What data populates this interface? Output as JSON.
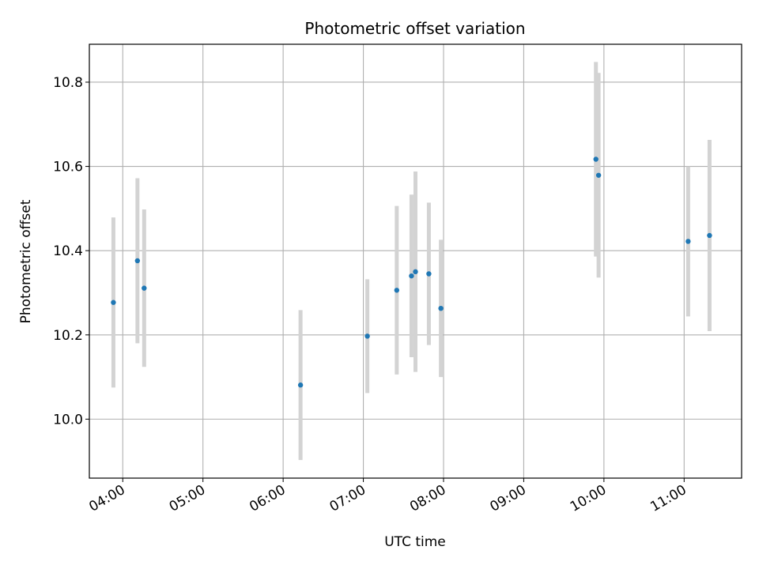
{
  "chart_data": {
    "type": "scatter",
    "title": "Photometric offset variation",
    "xlabel": "UTC time",
    "ylabel": "Photometric offset",
    "x_tick_labels": [
      "04:00",
      "05:00",
      "06:00",
      "07:00",
      "08:00",
      "09:00",
      "10:00",
      "11:00"
    ],
    "y_ticks": [
      10.0,
      10.2,
      10.4,
      10.6,
      10.8
    ],
    "y_tick_labels": [
      "10.0",
      "10.2",
      "10.4",
      "10.6",
      "10.8"
    ],
    "xlim": [
      "03:35",
      "11:43"
    ],
    "ylim": [
      9.86,
      10.89
    ],
    "grid": true,
    "marker_color": "#1f77b4",
    "errorbar_color": "#d3d3d3",
    "series": [
      {
        "points": [
          {
            "x": "03:53",
            "y": 10.277,
            "err": 0.202
          },
          {
            "x": "04:11",
            "y": 10.376,
            "err": 0.196
          },
          {
            "x": "04:16",
            "y": 10.311,
            "err": 0.187
          },
          {
            "x": "06:13",
            "y": 10.081,
            "err": 0.178
          },
          {
            "x": "07:03",
            "y": 10.197,
            "err": 0.135
          },
          {
            "x": "07:25",
            "y": 10.306,
            "err": 0.2
          },
          {
            "x": "07:36",
            "y": 10.34,
            "err": 0.193
          },
          {
            "x": "07:39",
            "y": 10.35,
            "err": 0.238
          },
          {
            "x": "07:49",
            "y": 10.345,
            "err": 0.169
          },
          {
            "x": "07:58",
            "y": 10.263,
            "err": 0.163
          },
          {
            "x": "09:54",
            "y": 10.617,
            "err": 0.231
          },
          {
            "x": "09:56",
            "y": 10.579,
            "err": 0.243
          },
          {
            "x": "11:03",
            "y": 10.422,
            "err": 0.178
          },
          {
            "x": "11:19",
            "y": 10.436,
            "err": 0.227
          }
        ]
      }
    ]
  }
}
